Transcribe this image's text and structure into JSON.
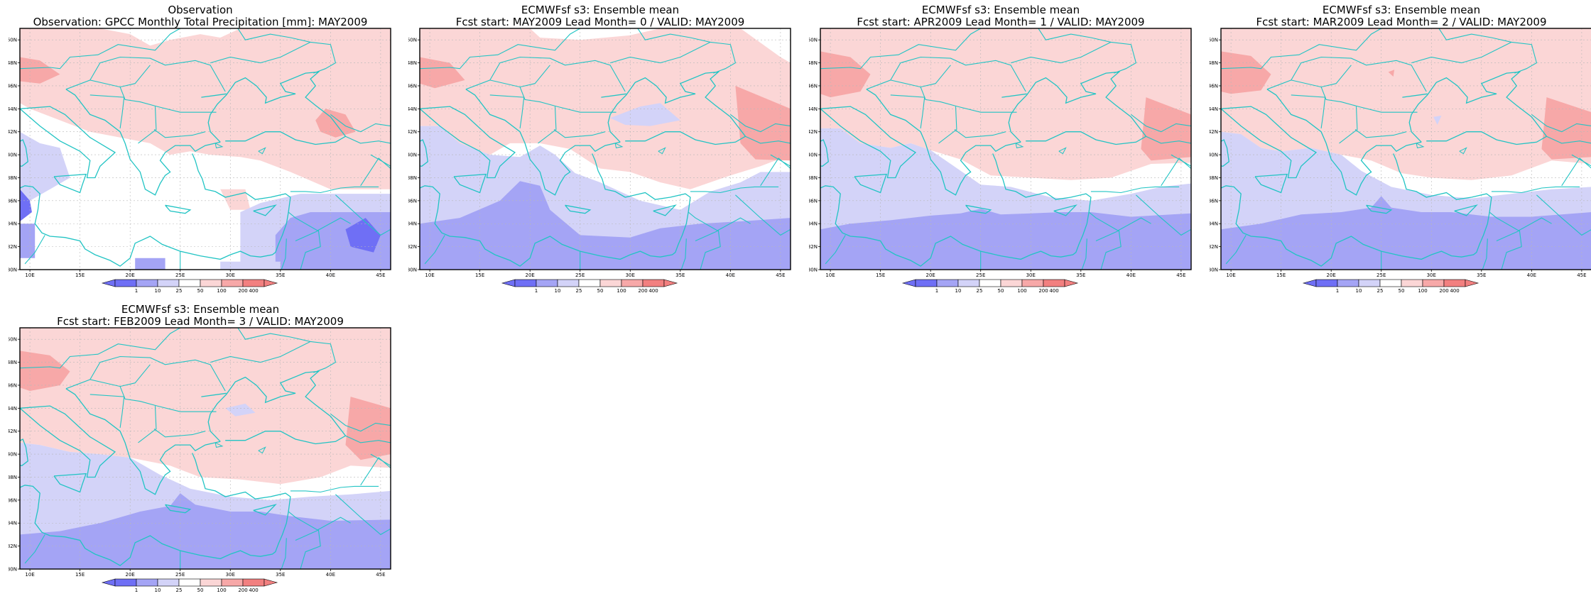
{
  "colors": {
    "blue_deep": "#6f6ff5",
    "blue_mid": "#a4a4f5",
    "blue_light": "#d3d3f8",
    "red_light": "#fbd6d6",
    "red_mid": "#f7a8a8",
    "red_deep": "#f28080",
    "coast": "#22c4c4",
    "grid": "#b8b8b8"
  },
  "axes": {
    "lon_ticks": [
      "10E",
      "15E",
      "20E",
      "25E",
      "30E",
      "35E",
      "40E",
      "45E"
    ],
    "lat_ticks": [
      "30N",
      "32N",
      "34N",
      "36N",
      "38N",
      "40N",
      "42N",
      "44N",
      "46N",
      "48N",
      "50N"
    ]
  },
  "colorbar": {
    "labels": [
      "1",
      "10",
      "25",
      "50",
      "100",
      "200",
      "400"
    ]
  },
  "panels": [
    {
      "id": "observation",
      "title1": "Observation",
      "title2": "Observation: GPCC Monthly Total Precipitation [mm]: MAY2009",
      "style": "obs"
    },
    {
      "id": "lead0",
      "title1": "ECMWFsf s3: Ensemble mean",
      "title2": "Fcst start: MAY2009   Lead Month= 0 / VALID: MAY2009",
      "style": "fc0"
    },
    {
      "id": "lead1",
      "title1": "ECMWFsf s3: Ensemble mean",
      "title2": "Fcst start: APR2009   Lead Month= 1 / VALID: MAY2009",
      "style": "fc1"
    },
    {
      "id": "lead2",
      "title1": "ECMWFsf s3: Ensemble mean",
      "title2": "Fcst start: MAR2009   Lead Month= 2 / VALID: MAY2009",
      "style": "fc2"
    },
    {
      "id": "lead3",
      "title1": "ECMWFsf s3: Ensemble mean",
      "title2": "Fcst start: FEB2009   Lead Month= 3 / VALID: MAY2009",
      "style": "fc3"
    }
  ]
}
